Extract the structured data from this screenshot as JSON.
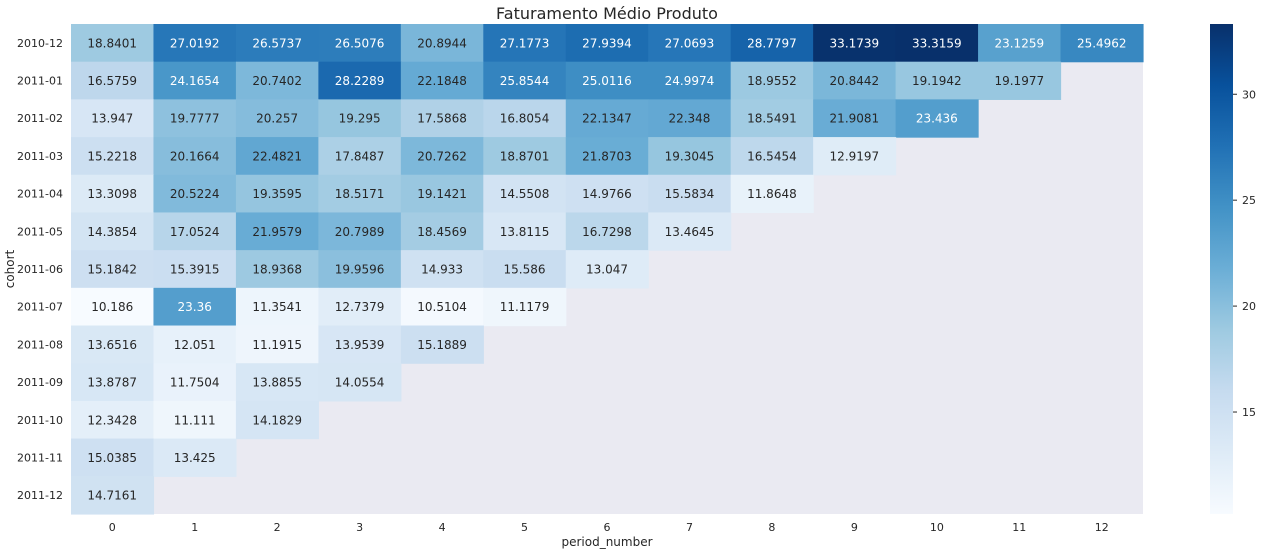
{
  "chart_data": {
    "type": "heatmap",
    "title": "Faturamento Médio Produto",
    "xlabel": "period_number",
    "ylabel": "cohort",
    "x_categories": [
      "0",
      "1",
      "2",
      "3",
      "4",
      "5",
      "6",
      "7",
      "8",
      "9",
      "10",
      "11",
      "12"
    ],
    "y_categories": [
      "2010-12",
      "2011-01",
      "2011-02",
      "2011-03",
      "2011-04",
      "2011-05",
      "2011-06",
      "2011-07",
      "2011-08",
      "2011-09",
      "2011-10",
      "2011-11",
      "2011-12"
    ],
    "values": [
      [
        "18.8401",
        "27.0192",
        "26.5737",
        "26.5076",
        "20.8944",
        "27.1773",
        "27.9394",
        "27.0693",
        "28.7797",
        "33.1739",
        "33.3159",
        "23.1259",
        "25.4962"
      ],
      [
        "16.5759",
        "24.1654",
        "20.7402",
        "28.2289",
        "22.1848",
        "25.8544",
        "25.0116",
        "24.9974",
        "18.9552",
        "20.8442",
        "19.1942",
        "19.1977"
      ],
      [
        "13.947",
        "19.7777",
        "20.257",
        "19.295",
        "17.5868",
        "16.8054",
        "22.1347",
        "22.348",
        "18.5491",
        "21.9081",
        "23.436"
      ],
      [
        "15.2218",
        "20.1664",
        "22.4821",
        "17.8487",
        "20.7262",
        "18.8701",
        "21.8703",
        "19.3045",
        "16.5454",
        "12.9197"
      ],
      [
        "13.3098",
        "20.5224",
        "19.3595",
        "18.5171",
        "19.1421",
        "14.5508",
        "14.9766",
        "15.5834",
        "11.8648"
      ],
      [
        "14.3854",
        "17.0524",
        "21.9579",
        "20.7989",
        "18.4569",
        "13.8115",
        "16.7298",
        "13.4645"
      ],
      [
        "15.1842",
        "15.3915",
        "18.9368",
        "19.9596",
        "14.933",
        "15.586",
        "13.047"
      ],
      [
        "10.186",
        "23.36",
        "11.3541",
        "12.7379",
        "10.5104",
        "11.1179"
      ],
      [
        "13.6516",
        "12.051",
        "11.1915",
        "13.9539",
        "15.1889"
      ],
      [
        "13.8787",
        "11.7504",
        "13.8855",
        "14.0554"
      ],
      [
        "12.3428",
        "11.111",
        "14.1829"
      ],
      [
        "15.0385",
        "13.425"
      ],
      [
        "14.7161"
      ]
    ],
    "colormap": "Blues",
    "colorbar": {
      "min": 10.186,
      "max": 33.3159,
      "ticks": [
        "15",
        "20",
        "25",
        "30"
      ]
    },
    "missing_color": "#eaeaf2"
  }
}
